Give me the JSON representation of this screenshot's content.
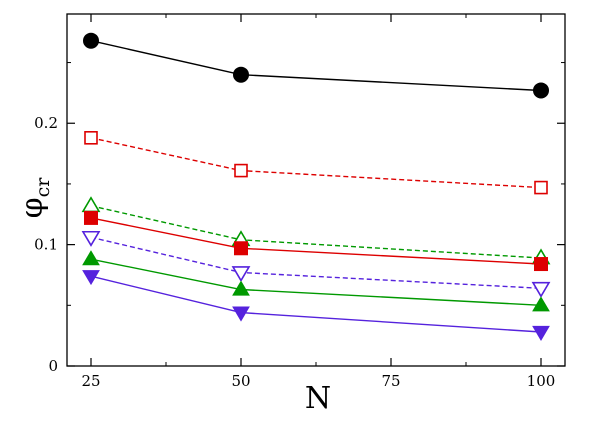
{
  "chart_data": {
    "type": "line",
    "title": "",
    "xlabel": "N",
    "ylabel": "φ",
    "ylabel_subscript": "cr",
    "xlim": [
      21,
      104
    ],
    "ylim": [
      0,
      0.29
    ],
    "x": [
      25,
      50,
      100
    ],
    "xticks": [
      25,
      50,
      75,
      100
    ],
    "xtick_labels": [
      "25",
      "50",
      "75",
      "100"
    ],
    "yticks": [
      0,
      0.1,
      0.2
    ],
    "ytick_labels": [
      "0",
      "0.1",
      "0.2"
    ],
    "grid": false,
    "legend": "none",
    "series": [
      {
        "name": "black-filled-circle",
        "color": "#000000",
        "marker": "circle",
        "filled": true,
        "dashed": false,
        "values": [
          0.268,
          0.24,
          0.227
        ]
      },
      {
        "name": "red-open-square",
        "color": "#dd0000",
        "marker": "square",
        "filled": false,
        "dashed": true,
        "values": [
          0.188,
          0.161,
          0.147
        ]
      },
      {
        "name": "green-open-triangle-up",
        "color": "#009900",
        "marker": "triangle-up",
        "filled": false,
        "dashed": true,
        "values": [
          0.132,
          0.104,
          0.089
        ]
      },
      {
        "name": "red-filled-square",
        "color": "#dd0000",
        "marker": "square",
        "filled": true,
        "dashed": false,
        "values": [
          0.122,
          0.097,
          0.084
        ]
      },
      {
        "name": "blue-open-triangle-down",
        "color": "#5522dd",
        "marker": "triangle-down",
        "filled": false,
        "dashed": true,
        "values": [
          0.106,
          0.077,
          0.064
        ]
      },
      {
        "name": "green-filled-triangle-up",
        "color": "#009900",
        "marker": "triangle-up",
        "filled": true,
        "dashed": false,
        "values": [
          0.088,
          0.063,
          0.05
        ]
      },
      {
        "name": "blue-filled-triangle-down",
        "color": "#5522dd",
        "marker": "triangle-down",
        "filled": true,
        "dashed": false,
        "values": [
          0.074,
          0.044,
          0.028
        ]
      }
    ]
  }
}
